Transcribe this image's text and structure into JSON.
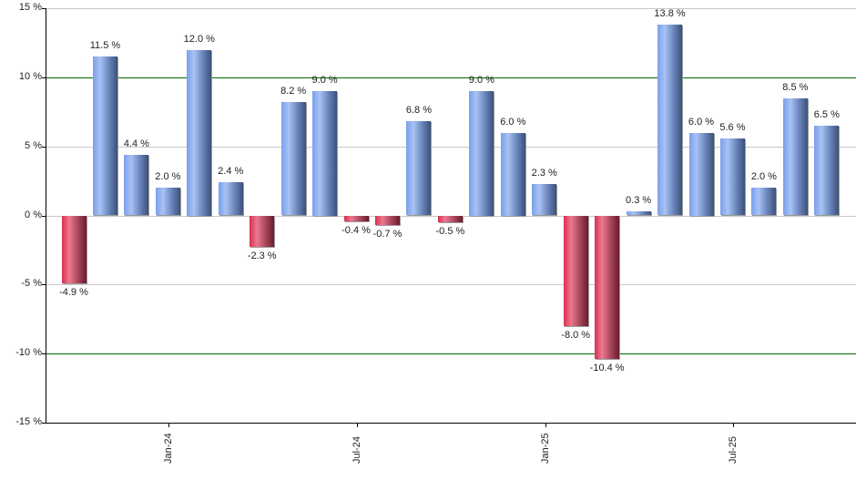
{
  "chart_data": {
    "type": "bar",
    "title": "",
    "xlabel": "",
    "ylabel": "",
    "ylim": [
      -15,
      15
    ],
    "yticks": [
      15,
      10,
      5,
      0,
      -5,
      -10,
      -15
    ],
    "ytick_labels": [
      "15 %",
      "10 %",
      "5 %",
      "0 %",
      "-5 %",
      "-10 %",
      "-15 %"
    ],
    "xtick_labels": [
      "Jan-24",
      "Jul-24",
      "Jan-25",
      "Jul-25"
    ],
    "xtick_bar_index": [
      3,
      9,
      15,
      21
    ],
    "highlight_lines": [
      10,
      -10
    ],
    "grid": true,
    "legend": null,
    "values": [
      -4.9,
      11.5,
      4.4,
      2.0,
      12.0,
      2.4,
      -2.3,
      8.2,
      9.0,
      -0.4,
      -0.7,
      6.8,
      -0.5,
      9.0,
      6.0,
      2.3,
      -8.0,
      -10.4,
      0.3,
      13.8,
      6.0,
      5.6,
      2.0,
      8.5,
      6.5
    ],
    "labels": [
      "-4.9 %",
      "11.5 %",
      "4.4 %",
      "2.0 %",
      "12.0 %",
      "2.4 %",
      "-2.3 %",
      "8.2 %",
      "9.0 %",
      "-0.4 %",
      "-0.7 %",
      "6.8 %",
      "-0.5 %",
      "9.0 %",
      "6.0 %",
      "2.3 %",
      "-8.0 %",
      "-10.4 %",
      "0.3 %",
      "13.8 %",
      "6.0 %",
      "5.6 %",
      "2.0 %",
      "8.5 %",
      "6.5 %"
    ],
    "colors": {
      "positive": "#7aa0ec",
      "negative": "#d8304e",
      "highlight_line": "#007000",
      "grid": "#c8c8c8"
    }
  }
}
